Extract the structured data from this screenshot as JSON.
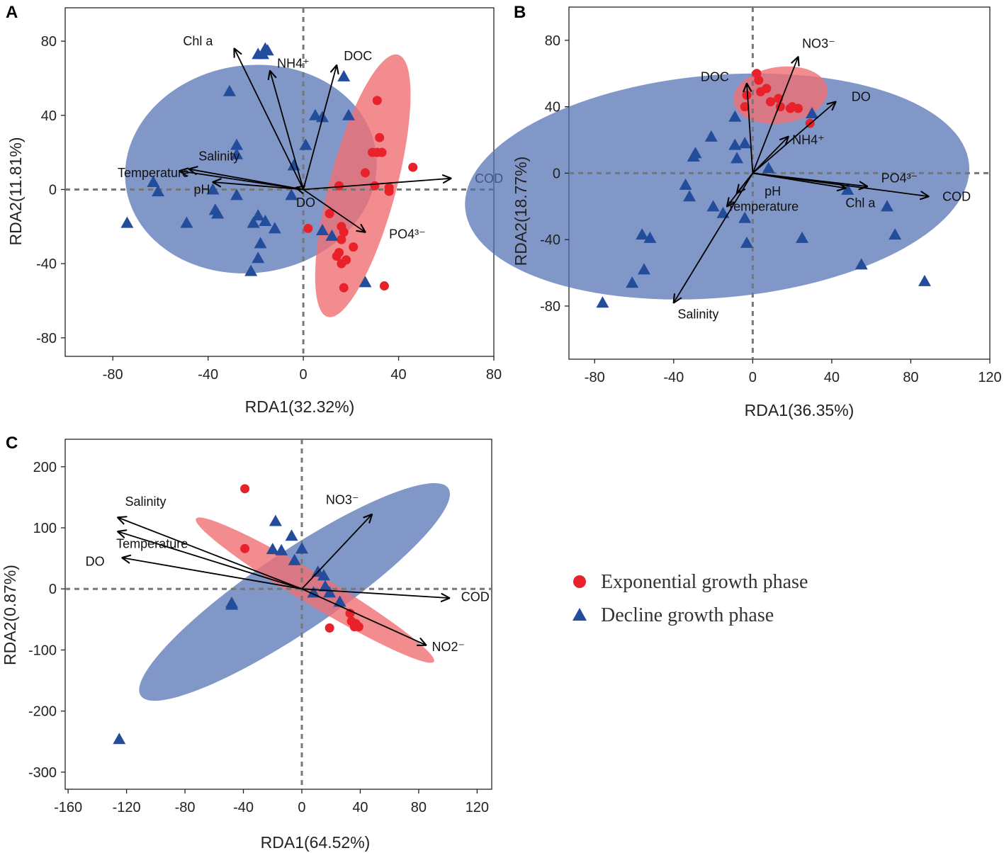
{
  "legend": {
    "exponential": {
      "label": "Exponential growth phase",
      "color": "#e8212b"
    },
    "decline": {
      "label": "Decline growth phase",
      "color": "#234d9b"
    }
  },
  "colors": {
    "exp_ellipse": "#ef6f73",
    "dec_ellipse": "#4f6fb3",
    "arrow": "#000000",
    "zero_line": "#777777"
  },
  "chart_data": [
    {
      "panel": "A",
      "type": "scatter",
      "xlabel": "RDA1(32.32%)",
      "ylabel": "RDA2(11.81%)",
      "xlim": [
        -100,
        80
      ],
      "ylim": [
        -90,
        98
      ],
      "xticks": [
        -80,
        -40,
        0,
        40,
        80
      ],
      "yticks": [
        -80,
        -40,
        0,
        40,
        80
      ],
      "ellipses": [
        {
          "series": "decline",
          "cx": -22,
          "cy": 11,
          "rx": 53,
          "ry": 56,
          "angle": -8
        },
        {
          "series": "exponential",
          "cx": 25,
          "cy": 2,
          "rx": 57,
          "ry": 18,
          "angle": 105
        }
      ],
      "arrows": [
        {
          "label": "Chl a",
          "x": -29,
          "y": 76,
          "lx": -38,
          "ly": 80
        },
        {
          "label": "NH4⁺",
          "x": -14,
          "y": 64,
          "lx": -11,
          "ly": 68
        },
        {
          "label": "DOC",
          "x": 14,
          "y": 67,
          "lx": 17,
          "ly": 72
        },
        {
          "label": "Salinity",
          "x": -48,
          "y": 11,
          "lx": -44,
          "ly": 18
        },
        {
          "label": "Temperature",
          "x": -52,
          "y": 10,
          "lx": -78,
          "ly": 9
        },
        {
          "label": "pH",
          "x": -38,
          "y": 4,
          "lx": -46,
          "ly": 0
        },
        {
          "label": "DO",
          "x": -3,
          "y": 1,
          "lx": -3,
          "ly": -7
        },
        {
          "label": "COD",
          "x": 62,
          "y": 6,
          "lx": 72,
          "ly": 6
        },
        {
          "label": "PO4³⁻",
          "x": 26,
          "y": -23,
          "lx": 36,
          "ly": -24
        }
      ],
      "series": [
        {
          "name": "Exponential growth phase",
          "marker": "circle",
          "points": [
            [
              31,
              48
            ],
            [
              46,
              12
            ],
            [
              32,
              28
            ],
            [
              29,
              20
            ],
            [
              31,
              20
            ],
            [
              33,
              20
            ],
            [
              26,
              9
            ],
            [
              30,
              2
            ],
            [
              36,
              1
            ],
            [
              36,
              -1
            ],
            [
              15,
              2
            ],
            [
              16,
              -20
            ],
            [
              17,
              -23
            ],
            [
              16,
              -27
            ],
            [
              15,
              -34
            ],
            [
              14,
              -36
            ],
            [
              16,
              -40
            ],
            [
              18,
              -38
            ],
            [
              21,
              -31
            ],
            [
              11,
              -13
            ],
            [
              2,
              -21
            ],
            [
              17,
              -53
            ],
            [
              34,
              -52
            ]
          ]
        },
        {
          "name": "Decline growth phase",
          "marker": "triangle",
          "points": [
            [
              -19,
              73
            ],
            [
              -17,
              73
            ],
            [
              -15,
              75
            ],
            [
              -16,
              76
            ],
            [
              17,
              61
            ],
            [
              19,
              40
            ],
            [
              -31,
              53
            ],
            [
              5,
              40
            ],
            [
              8,
              39
            ],
            [
              1,
              24
            ],
            [
              -28,
              24
            ],
            [
              -28,
              19
            ],
            [
              -4,
              13
            ],
            [
              -63,
              4
            ],
            [
              -61,
              -1
            ],
            [
              -38,
              0
            ],
            [
              -37,
              -11
            ],
            [
              -36,
              -13
            ],
            [
              -28,
              -3
            ],
            [
              -5,
              -3
            ],
            [
              -19,
              -14
            ],
            [
              -21,
              -18
            ],
            [
              -16,
              -17
            ],
            [
              -12,
              -21
            ],
            [
              -18,
              -29
            ],
            [
              -19,
              -37
            ],
            [
              -22,
              -44
            ],
            [
              -49,
              -18
            ],
            [
              -74,
              -18
            ],
            [
              8,
              -22
            ],
            [
              12,
              -25
            ],
            [
              26,
              -50
            ]
          ]
        }
      ]
    },
    {
      "panel": "B",
      "type": "scatter",
      "xlabel": "RDA1(36.35%)",
      "ylabel": "RDA2(18.77%)",
      "xlim": [
        -93,
        120
      ],
      "ylim": [
        -112,
        100
      ],
      "xticks": [
        -80,
        -40,
        0,
        40,
        80,
        120
      ],
      "yticks": [
        -80,
        -40,
        0,
        40,
        80
      ],
      "ellipses": [
        {
          "series": "decline",
          "cx": -18,
          "cy": -8,
          "rx": 128,
          "ry": 67,
          "angle": -5
        },
        {
          "series": "exponential",
          "cx": 14,
          "cy": 47,
          "rx": 24,
          "ry": 17,
          "angle": -8
        }
      ],
      "arrows": [
        {
          "label": "NO3⁻",
          "x": 23,
          "y": 70,
          "lx": 25,
          "ly": 78
        },
        {
          "label": "DOC",
          "x": -3,
          "y": 54,
          "lx": -12,
          "ly": 58
        },
        {
          "label": "DO",
          "x": 42,
          "y": 43,
          "lx": 50,
          "ly": 46
        },
        {
          "label": "NH4⁺",
          "x": 18,
          "y": 22,
          "lx": 20,
          "ly": 20
        },
        {
          "label": "PO4³⁻",
          "x": 58,
          "y": -8,
          "lx": 65,
          "ly": -3
        },
        {
          "label": "COD",
          "x": 89,
          "y": -14,
          "lx": 96,
          "ly": -14
        },
        {
          "label": "Chl a",
          "x": 47,
          "y": -9,
          "lx": 47,
          "ly": -18
        },
        {
          "label": "pH",
          "x": -8,
          "y": -12,
          "lx": 6,
          "ly": -11
        },
        {
          "label": "Temperature",
          "x": -13,
          "y": -20,
          "lx": -13,
          "ly": -20
        },
        {
          "label": "Salinity",
          "x": -40,
          "y": -78,
          "lx": -38,
          "ly": -85
        }
      ],
      "series": [
        {
          "name": "Exponential growth phase",
          "marker": "circle",
          "points": [
            [
              2,
              60
            ],
            [
              3,
              56
            ],
            [
              7,
              51
            ],
            [
              4,
              49
            ],
            [
              13,
              45
            ],
            [
              14,
              40
            ],
            [
              9,
              43
            ],
            [
              -4,
              40
            ],
            [
              -3,
              47
            ],
            [
              19,
              39
            ],
            [
              23,
              39
            ],
            [
              20,
              40
            ],
            [
              29,
              30
            ]
          ]
        },
        {
          "name": "Decline growth phase",
          "marker": "triangle",
          "points": [
            [
              30,
              36
            ],
            [
              -9,
              34
            ],
            [
              -9,
              17
            ],
            [
              -4,
              18
            ],
            [
              -21,
              22
            ],
            [
              -29,
              12
            ],
            [
              -30,
              10
            ],
            [
              -8,
              9
            ],
            [
              8,
              3
            ],
            [
              -34,
              -7
            ],
            [
              -32,
              -14
            ],
            [
              -20,
              -20
            ],
            [
              -15,
              -24
            ],
            [
              -4,
              -27
            ],
            [
              -3,
              -42
            ],
            [
              25,
              -39
            ],
            [
              48,
              -10
            ],
            [
              68,
              -20
            ],
            [
              72,
              -37
            ],
            [
              55,
              -55
            ],
            [
              87,
              -65
            ],
            [
              -56,
              -37
            ],
            [
              -52,
              -39
            ],
            [
              -55,
              -58
            ],
            [
              -61,
              -66
            ],
            [
              -76,
              -78
            ]
          ]
        }
      ]
    },
    {
      "panel": "C",
      "type": "scatter",
      "xlabel": "RDA1(64.52%)",
      "ylabel": "RDA2(0.87%)",
      "xlim": [
        -162,
        130
      ],
      "ylim": [
        -328,
        245
      ],
      "xticks": [
        -160,
        -120,
        -80,
        -40,
        0,
        40,
        80,
        120
      ],
      "yticks": [
        -300,
        -200,
        -100,
        0,
        100,
        200
      ],
      "ellipses": [
        {
          "series": "decline",
          "cx": -5,
          "cy": -5,
          "rx": 127,
          "ry": 65,
          "angle": -34
        },
        {
          "series": "exponential",
          "cx": 9,
          "cy": -2,
          "rx": 95,
          "ry": 25,
          "angle": 31
        }
      ],
      "arrows": [
        {
          "label": "Salinity",
          "x": -126,
          "y": 117,
          "lx": -121,
          "ly": 143
        },
        {
          "label": "Temperature",
          "x": -126,
          "y": 94,
          "lx": -127,
          "ly": 74
        },
        {
          "label": "DO",
          "x": -123,
          "y": 51,
          "lx": -135,
          "ly": 45
        },
        {
          "label": "NO3⁻",
          "x": 48,
          "y": 122,
          "lx": 39,
          "ly": 146
        },
        {
          "label": "COD",
          "x": 101,
          "y": -15,
          "lx": 109,
          "ly": -13
        },
        {
          "label": "NO2⁻",
          "x": 85,
          "y": -92,
          "lx": 89,
          "ly": -95
        }
      ],
      "series": [
        {
          "name": "Exponential growth phase",
          "marker": "circle",
          "points": [
            [
              -39,
              164
            ],
            [
              -39,
              66
            ],
            [
              33,
              -40
            ],
            [
              34,
              -53
            ],
            [
              37,
              -57
            ],
            [
              36,
              -62
            ],
            [
              39,
              -62
            ],
            [
              19,
              -64
            ]
          ]
        },
        {
          "name": "Decline growth phase",
          "marker": "triangle",
          "points": [
            [
              -18,
              111
            ],
            [
              -7,
              87
            ],
            [
              -20,
              65
            ],
            [
              -14,
              63
            ],
            [
              0,
              66
            ],
            [
              -5,
              47
            ],
            [
              11,
              28
            ],
            [
              15,
              22
            ],
            [
              16,
              4
            ],
            [
              8,
              -6
            ],
            [
              19,
              -6
            ],
            [
              26,
              -21
            ],
            [
              -48,
              -23
            ],
            [
              -48,
              -26
            ],
            [
              -125,
              -246
            ]
          ]
        }
      ]
    }
  ]
}
